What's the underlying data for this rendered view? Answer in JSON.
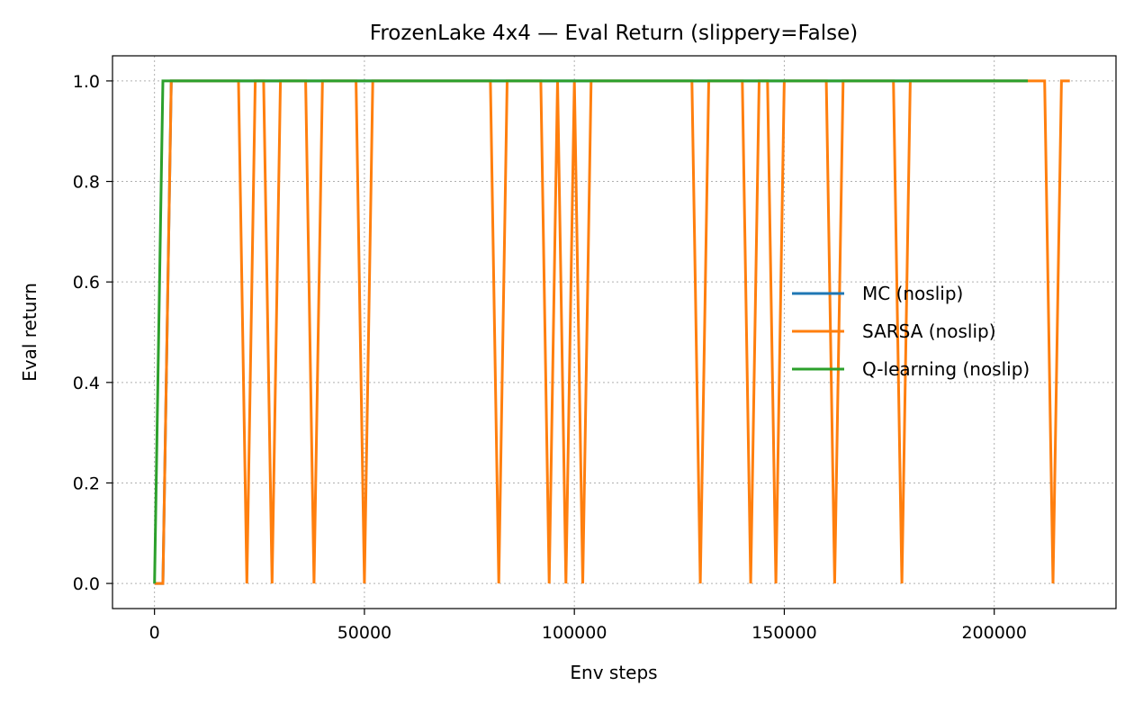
{
  "chart_data": {
    "type": "line",
    "title": "FrozenLake 4x4 — Eval Return (slippery=False)",
    "xlabel": "Env steps",
    "ylabel": "Eval return",
    "xlim": [
      -10000,
      229000
    ],
    "ylim": [
      -0.05,
      1.05
    ],
    "xticks": [
      0,
      50000,
      100000,
      150000,
      200000
    ],
    "xtick_labels": [
      "0",
      "50000",
      "100000",
      "150000",
      "200000"
    ],
    "yticks": [
      0.0,
      0.2,
      0.4,
      0.6,
      0.8,
      1.0
    ],
    "ytick_labels": [
      "0.0",
      "0.2",
      "0.4",
      "0.6",
      "0.8",
      "1.0"
    ],
    "grid": true,
    "legend_position": "center-right",
    "series": [
      {
        "name": "MC (noslip)",
        "color": "#1f77b4",
        "x": [
          0,
          2000,
          4000,
          208000
        ],
        "y": [
          0,
          0,
          1,
          1
        ]
      },
      {
        "name": "SARSA (noslip)",
        "color": "#ff7f0e",
        "x": [
          0,
          2000,
          4000,
          20000,
          22000,
          24000,
          26000,
          28000,
          30000,
          36000,
          38000,
          40000,
          48000,
          50000,
          52000,
          80000,
          82000,
          84000,
          92000,
          94000,
          96000,
          98000,
          100000,
          102000,
          104000,
          128000,
          130000,
          132000,
          140000,
          142000,
          144000,
          146000,
          148000,
          150000,
          160000,
          162000,
          164000,
          176000,
          178000,
          180000,
          212000,
          214000,
          216000,
          218000
        ],
        "y": [
          0,
          0,
          1,
          1,
          0,
          1,
          1,
          0,
          1,
          1,
          0,
          1,
          1,
          0,
          1,
          1,
          0,
          1,
          1,
          0,
          1,
          0,
          1,
          0,
          1,
          1,
          0,
          1,
          1,
          0,
          1,
          1,
          0,
          1,
          1,
          0,
          1,
          1,
          0,
          1,
          1,
          0,
          1,
          1
        ]
      },
      {
        "name": "Q-learning (noslip)",
        "color": "#2ca02c",
        "x": [
          0,
          2000,
          4000,
          208000
        ],
        "y": [
          0,
          1,
          1,
          1
        ]
      }
    ]
  }
}
